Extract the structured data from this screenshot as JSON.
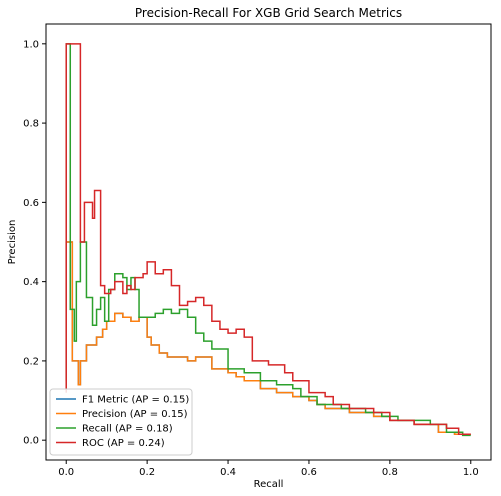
{
  "chart_data": {
    "type": "line",
    "title": "Precision-Recall For XGB Grid Search Metrics",
    "xlabel": "Recall",
    "ylabel": "Precision",
    "xlim": [
      -0.05,
      1.05
    ],
    "ylim": [
      -0.05,
      1.05
    ],
    "xticks": [
      0.0,
      0.2,
      0.4,
      0.6,
      0.8,
      1.0
    ],
    "yticks": [
      0.0,
      0.2,
      0.4,
      0.6,
      0.8,
      1.0
    ],
    "x_tick_labels": [
      "0.0",
      "0.2",
      "0.4",
      "0.6",
      "0.8",
      "1.0"
    ],
    "y_tick_labels": [
      "0.0",
      "0.2",
      "0.4",
      "0.6",
      "0.8",
      "1.0"
    ],
    "grid": false,
    "legend_position": "lower-left",
    "step": "post",
    "series": [
      {
        "name": "F1 Metric (AP = 0.15)",
        "color": "#1f77b4",
        "points": [
          [
            0,
            0.15
          ],
          [
            0,
            0.5
          ],
          [
            0.015,
            0.5
          ],
          [
            0.015,
            0.2
          ],
          [
            0.03,
            0.2
          ],
          [
            0.03,
            0.14
          ],
          [
            0.035,
            0.14
          ],
          [
            0.035,
            0.2
          ],
          [
            0.05,
            0.2
          ],
          [
            0.05,
            0.24
          ],
          [
            0.075,
            0.24
          ],
          [
            0.075,
            0.26
          ],
          [
            0.09,
            0.26
          ],
          [
            0.09,
            0.28
          ],
          [
            0.1,
            0.28
          ],
          [
            0.1,
            0.3
          ],
          [
            0.12,
            0.3
          ],
          [
            0.12,
            0.32
          ],
          [
            0.14,
            0.32
          ],
          [
            0.14,
            0.31
          ],
          [
            0.16,
            0.31
          ],
          [
            0.16,
            0.3
          ],
          [
            0.18,
            0.3
          ],
          [
            0.18,
            0.31
          ],
          [
            0.2,
            0.31
          ],
          [
            0.2,
            0.26
          ],
          [
            0.21,
            0.26
          ],
          [
            0.21,
            0.24
          ],
          [
            0.23,
            0.24
          ],
          [
            0.23,
            0.22
          ],
          [
            0.25,
            0.22
          ],
          [
            0.25,
            0.21
          ],
          [
            0.3,
            0.21
          ],
          [
            0.3,
            0.2
          ],
          [
            0.32,
            0.2
          ],
          [
            0.32,
            0.21
          ],
          [
            0.36,
            0.21
          ],
          [
            0.36,
            0.18
          ],
          [
            0.4,
            0.18
          ],
          [
            0.4,
            0.17
          ],
          [
            0.42,
            0.17
          ],
          [
            0.42,
            0.16
          ],
          [
            0.44,
            0.16
          ],
          [
            0.44,
            0.15
          ],
          [
            0.48,
            0.15
          ],
          [
            0.48,
            0.13
          ],
          [
            0.52,
            0.13
          ],
          [
            0.52,
            0.12
          ],
          [
            0.56,
            0.12
          ],
          [
            0.56,
            0.11
          ],
          [
            0.6,
            0.11
          ],
          [
            0.6,
            0.1
          ],
          [
            0.62,
            0.1
          ],
          [
            0.62,
            0.09
          ],
          [
            0.64,
            0.09
          ],
          [
            0.64,
            0.08
          ],
          [
            0.7,
            0.08
          ],
          [
            0.7,
            0.07
          ],
          [
            0.76,
            0.07
          ],
          [
            0.76,
            0.06
          ],
          [
            0.8,
            0.06
          ],
          [
            0.8,
            0.05
          ],
          [
            0.86,
            0.05
          ],
          [
            0.86,
            0.04
          ],
          [
            0.92,
            0.04
          ],
          [
            0.92,
            0.02
          ],
          [
            0.96,
            0.02
          ],
          [
            0.96,
            0.015
          ],
          [
            1,
            0.015
          ]
        ]
      },
      {
        "name": "Precision (AP = 0.15)",
        "color": "#ff7f0e",
        "points": [
          [
            0,
            0.15
          ],
          [
            0,
            0.5
          ],
          [
            0.015,
            0.5
          ],
          [
            0.015,
            0.2
          ],
          [
            0.03,
            0.2
          ],
          [
            0.03,
            0.14
          ],
          [
            0.035,
            0.14
          ],
          [
            0.035,
            0.2
          ],
          [
            0.05,
            0.2
          ],
          [
            0.05,
            0.24
          ],
          [
            0.075,
            0.24
          ],
          [
            0.075,
            0.26
          ],
          [
            0.09,
            0.26
          ],
          [
            0.09,
            0.28
          ],
          [
            0.1,
            0.28
          ],
          [
            0.1,
            0.3
          ],
          [
            0.12,
            0.3
          ],
          [
            0.12,
            0.32
          ],
          [
            0.14,
            0.32
          ],
          [
            0.14,
            0.31
          ],
          [
            0.16,
            0.31
          ],
          [
            0.16,
            0.3
          ],
          [
            0.18,
            0.3
          ],
          [
            0.18,
            0.31
          ],
          [
            0.2,
            0.31
          ],
          [
            0.2,
            0.26
          ],
          [
            0.21,
            0.26
          ],
          [
            0.21,
            0.24
          ],
          [
            0.23,
            0.24
          ],
          [
            0.23,
            0.22
          ],
          [
            0.25,
            0.22
          ],
          [
            0.25,
            0.21
          ],
          [
            0.3,
            0.21
          ],
          [
            0.3,
            0.2
          ],
          [
            0.32,
            0.2
          ],
          [
            0.32,
            0.21
          ],
          [
            0.36,
            0.21
          ],
          [
            0.36,
            0.18
          ],
          [
            0.4,
            0.18
          ],
          [
            0.4,
            0.17
          ],
          [
            0.42,
            0.17
          ],
          [
            0.42,
            0.16
          ],
          [
            0.44,
            0.16
          ],
          [
            0.44,
            0.15
          ],
          [
            0.48,
            0.15
          ],
          [
            0.48,
            0.13
          ],
          [
            0.52,
            0.13
          ],
          [
            0.52,
            0.12
          ],
          [
            0.56,
            0.12
          ],
          [
            0.56,
            0.11
          ],
          [
            0.6,
            0.11
          ],
          [
            0.6,
            0.1
          ],
          [
            0.62,
            0.1
          ],
          [
            0.62,
            0.09
          ],
          [
            0.64,
            0.09
          ],
          [
            0.64,
            0.08
          ],
          [
            0.7,
            0.08
          ],
          [
            0.7,
            0.07
          ],
          [
            0.76,
            0.07
          ],
          [
            0.76,
            0.06
          ],
          [
            0.8,
            0.06
          ],
          [
            0.8,
            0.05
          ],
          [
            0.86,
            0.05
          ],
          [
            0.86,
            0.04
          ],
          [
            0.92,
            0.04
          ],
          [
            0.92,
            0.02
          ],
          [
            0.96,
            0.02
          ],
          [
            0.96,
            0.015
          ],
          [
            1,
            0.015
          ]
        ]
      },
      {
        "name": "Recall (AP = 0.18)",
        "color": "#2ca02c",
        "points": [
          [
            0,
            0.12
          ],
          [
            0,
            1.0
          ],
          [
            0.01,
            1.0
          ],
          [
            0.01,
            0.33
          ],
          [
            0.02,
            0.33
          ],
          [
            0.02,
            0.25
          ],
          [
            0.025,
            0.25
          ],
          [
            0.025,
            0.4
          ],
          [
            0.035,
            0.4
          ],
          [
            0.035,
            0.5
          ],
          [
            0.05,
            0.5
          ],
          [
            0.05,
            0.36
          ],
          [
            0.065,
            0.36
          ],
          [
            0.065,
            0.29
          ],
          [
            0.075,
            0.29
          ],
          [
            0.075,
            0.33
          ],
          [
            0.085,
            0.33
          ],
          [
            0.085,
            0.36
          ],
          [
            0.095,
            0.36
          ],
          [
            0.095,
            0.3
          ],
          [
            0.105,
            0.3
          ],
          [
            0.105,
            0.38
          ],
          [
            0.12,
            0.38
          ],
          [
            0.12,
            0.42
          ],
          [
            0.14,
            0.42
          ],
          [
            0.14,
            0.41
          ],
          [
            0.15,
            0.41
          ],
          [
            0.15,
            0.38
          ],
          [
            0.16,
            0.38
          ],
          [
            0.16,
            0.41
          ],
          [
            0.17,
            0.41
          ],
          [
            0.17,
            0.38
          ],
          [
            0.18,
            0.38
          ],
          [
            0.18,
            0.31
          ],
          [
            0.22,
            0.31
          ],
          [
            0.22,
            0.32
          ],
          [
            0.24,
            0.32
          ],
          [
            0.24,
            0.33
          ],
          [
            0.26,
            0.33
          ],
          [
            0.26,
            0.32
          ],
          [
            0.28,
            0.32
          ],
          [
            0.28,
            0.33
          ],
          [
            0.3,
            0.33
          ],
          [
            0.3,
            0.31
          ],
          [
            0.32,
            0.31
          ],
          [
            0.32,
            0.27
          ],
          [
            0.34,
            0.27
          ],
          [
            0.34,
            0.25
          ],
          [
            0.36,
            0.25
          ],
          [
            0.36,
            0.23
          ],
          [
            0.4,
            0.23
          ],
          [
            0.4,
            0.18
          ],
          [
            0.44,
            0.18
          ],
          [
            0.44,
            0.17
          ],
          [
            0.48,
            0.17
          ],
          [
            0.48,
            0.15
          ],
          [
            0.52,
            0.15
          ],
          [
            0.52,
            0.14
          ],
          [
            0.56,
            0.14
          ],
          [
            0.56,
            0.13
          ],
          [
            0.58,
            0.13
          ],
          [
            0.58,
            0.11
          ],
          [
            0.62,
            0.11
          ],
          [
            0.62,
            0.09
          ],
          [
            0.68,
            0.09
          ],
          [
            0.68,
            0.08
          ],
          [
            0.74,
            0.08
          ],
          [
            0.74,
            0.07
          ],
          [
            0.78,
            0.07
          ],
          [
            0.78,
            0.06
          ],
          [
            0.82,
            0.06
          ],
          [
            0.82,
            0.05
          ],
          [
            0.9,
            0.05
          ],
          [
            0.9,
            0.04
          ],
          [
            0.94,
            0.04
          ],
          [
            0.94,
            0.02
          ],
          [
            0.98,
            0.02
          ],
          [
            0.98,
            0.012
          ],
          [
            1,
            0.012
          ]
        ]
      },
      {
        "name": "ROC (AP = 0.24)",
        "color": "#d62728",
        "points": [
          [
            0,
            0.12
          ],
          [
            0,
            1.0
          ],
          [
            0.035,
            1.0
          ],
          [
            0.035,
            0.5
          ],
          [
            0.045,
            0.5
          ],
          [
            0.045,
            0.6
          ],
          [
            0.065,
            0.6
          ],
          [
            0.065,
            0.56
          ],
          [
            0.07,
            0.56
          ],
          [
            0.07,
            0.63
          ],
          [
            0.085,
            0.63
          ],
          [
            0.085,
            0.39
          ],
          [
            0.095,
            0.39
          ],
          [
            0.095,
            0.37
          ],
          [
            0.11,
            0.37
          ],
          [
            0.11,
            0.38
          ],
          [
            0.12,
            0.38
          ],
          [
            0.12,
            0.4
          ],
          [
            0.14,
            0.4
          ],
          [
            0.14,
            0.37
          ],
          [
            0.15,
            0.37
          ],
          [
            0.15,
            0.39
          ],
          [
            0.16,
            0.39
          ],
          [
            0.16,
            0.38
          ],
          [
            0.17,
            0.38
          ],
          [
            0.17,
            0.41
          ],
          [
            0.19,
            0.41
          ],
          [
            0.19,
            0.42
          ],
          [
            0.2,
            0.42
          ],
          [
            0.2,
            0.45
          ],
          [
            0.22,
            0.45
          ],
          [
            0.22,
            0.42
          ],
          [
            0.24,
            0.42
          ],
          [
            0.24,
            0.43
          ],
          [
            0.26,
            0.43
          ],
          [
            0.26,
            0.39
          ],
          [
            0.28,
            0.39
          ],
          [
            0.28,
            0.34
          ],
          [
            0.3,
            0.34
          ],
          [
            0.3,
            0.35
          ],
          [
            0.32,
            0.35
          ],
          [
            0.32,
            0.36
          ],
          [
            0.34,
            0.36
          ],
          [
            0.34,
            0.34
          ],
          [
            0.36,
            0.34
          ],
          [
            0.36,
            0.3
          ],
          [
            0.38,
            0.3
          ],
          [
            0.38,
            0.28
          ],
          [
            0.4,
            0.28
          ],
          [
            0.4,
            0.27
          ],
          [
            0.42,
            0.27
          ],
          [
            0.42,
            0.28
          ],
          [
            0.44,
            0.28
          ],
          [
            0.44,
            0.26
          ],
          [
            0.46,
            0.26
          ],
          [
            0.46,
            0.2
          ],
          [
            0.48,
            0.2
          ],
          [
            0.48,
            0.2
          ],
          [
            0.5,
            0.2
          ],
          [
            0.5,
            0.19
          ],
          [
            0.54,
            0.19
          ],
          [
            0.54,
            0.17
          ],
          [
            0.56,
            0.17
          ],
          [
            0.56,
            0.15
          ],
          [
            0.6,
            0.15
          ],
          [
            0.6,
            0.12
          ],
          [
            0.64,
            0.12
          ],
          [
            0.64,
            0.11
          ],
          [
            0.66,
            0.11
          ],
          [
            0.66,
            0.09
          ],
          [
            0.7,
            0.09
          ],
          [
            0.7,
            0.08
          ],
          [
            0.76,
            0.08
          ],
          [
            0.76,
            0.07
          ],
          [
            0.8,
            0.07
          ],
          [
            0.8,
            0.05
          ],
          [
            0.86,
            0.05
          ],
          [
            0.86,
            0.04
          ],
          [
            0.94,
            0.04
          ],
          [
            0.94,
            0.03
          ],
          [
            0.97,
            0.03
          ],
          [
            0.97,
            0.015
          ],
          [
            1,
            0.015
          ]
        ]
      }
    ]
  }
}
